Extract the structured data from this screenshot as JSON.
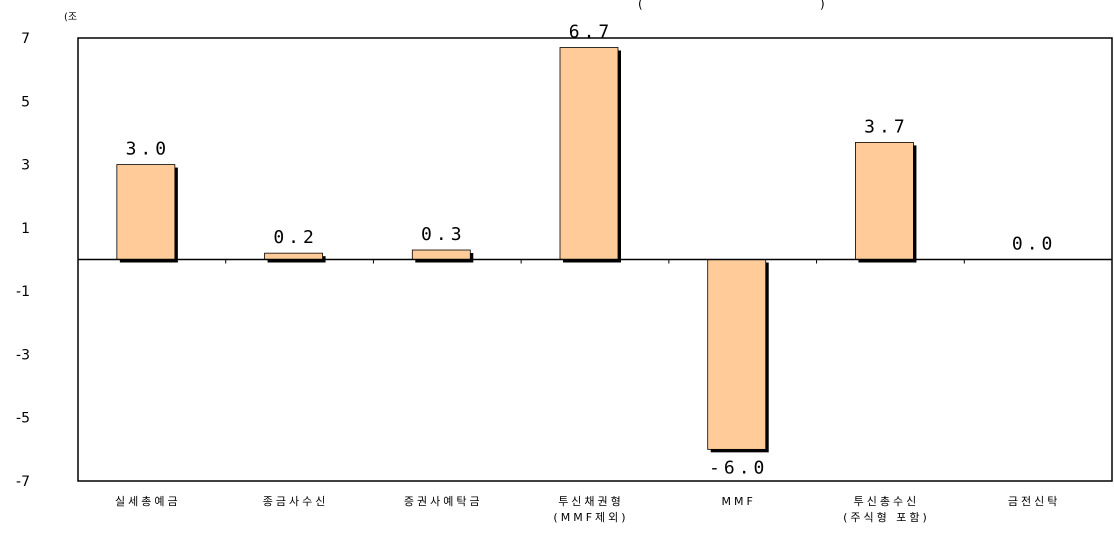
{
  "chart_data": {
    "type": "bar",
    "unit_label": "(조",
    "title_fragment": "(",
    "title_fragment_end": ")",
    "categories": [
      [
        "실세총예금"
      ],
      [
        "종금사수신"
      ],
      [
        "증권사예탁금"
      ],
      [
        "투신채권형",
        "(MMF제외)"
      ],
      [
        "MMF"
      ],
      [
        "투신총수신",
        "(주식형 포함)"
      ],
      [
        "금전신탁"
      ]
    ],
    "values": [
      3.0,
      0.2,
      0.3,
      6.7,
      -6.0,
      3.7,
      0.0
    ],
    "data_labels": [
      "3.0",
      "0.2",
      "0.3",
      "6.7",
      "-6.0",
      "3.7",
      "0.0"
    ],
    "yticks": [
      "7",
      "5",
      "3",
      "1",
      "-1",
      "-3",
      "-5",
      "-7"
    ],
    "ylim": [
      -7,
      7
    ],
    "bar_color": "#FFCC99",
    "bar_shadow_color": "#000000",
    "grid": false,
    "legend": "none"
  }
}
